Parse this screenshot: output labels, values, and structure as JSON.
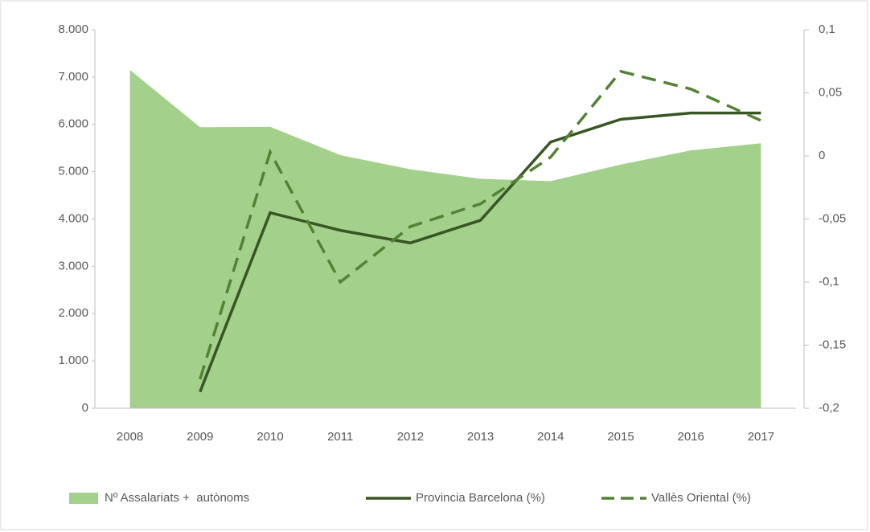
{
  "chart_data": {
    "type": "area-line",
    "categories": [
      "2008",
      "2009",
      "2010",
      "2011",
      "2012",
      "2013",
      "2014",
      "2015",
      "2016",
      "2017"
    ],
    "series": [
      {
        "name": "Nº Assalariats +  autònoms",
        "type": "area",
        "color": "#a3d18c",
        "axis": "y",
        "values": [
          7150,
          5940,
          5950,
          5350,
          5050,
          4850,
          4800,
          5150,
          5450,
          5600
        ]
      },
      {
        "name": "Provincia Barcelona (%)",
        "type": "line",
        "color": "#375623",
        "axis": "y2",
        "dash": false,
        "values": [
          null,
          -0.187,
          -0.045,
          -0.059,
          -0.069,
          -0.051,
          0.011,
          0.029,
          0.034,
          0.034
        ]
      },
      {
        "name": "Vallès Oriental (%)",
        "type": "line",
        "color": "#548235",
        "axis": "y2",
        "dash": true,
        "values": [
          null,
          -0.177,
          0.003,
          -0.1,
          -0.056,
          -0.038,
          -0.001,
          0.067,
          0.053,
          0.028
        ]
      }
    ],
    "ylim": [
      0,
      8000
    ],
    "yticks": [
      0,
      {
        "value": 1000,
        "label": "1.000"
      },
      {
        "value": 2000,
        "label": "2.000"
      },
      {
        "value": 3000,
        "label": "3.000"
      },
      {
        "value": 4000,
        "label": "4.000"
      },
      {
        "value": 5000,
        "label": "5.000"
      },
      {
        "value": 6000,
        "label": "6.000"
      },
      {
        "value": 7000,
        "label": "7.000"
      },
      {
        "value": 8000,
        "label": "8.000"
      }
    ],
    "y2lim": [
      -0.2,
      0.1
    ],
    "y2ticks": [
      {
        "value": -0.2,
        "label": "-0,2"
      },
      {
        "value": -0.15,
        "label": "-0,15"
      },
      {
        "value": -0.1,
        "label": "-0,1"
      },
      {
        "value": -0.05,
        "label": "-0,05"
      },
      0,
      {
        "value": 0.05,
        "label": "0,05"
      },
      {
        "value": 0.1,
        "label": "0,1"
      }
    ],
    "legend": "bottom",
    "grid": false
  }
}
